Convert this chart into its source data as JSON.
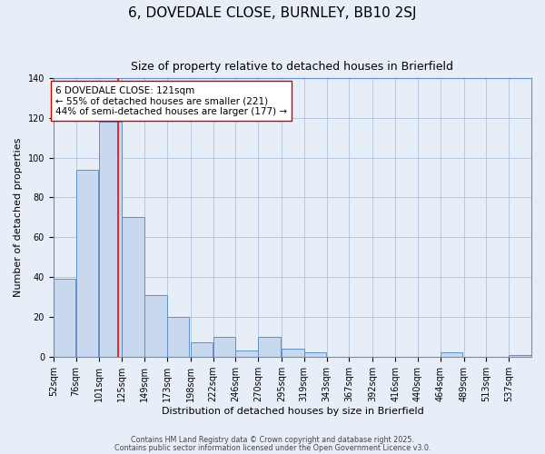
{
  "title": "6, DOVEDALE CLOSE, BURNLEY, BB10 2SJ",
  "subtitle": "Size of property relative to detached houses in Brierfield",
  "xlabel": "Distribution of detached houses by size in Brierfield",
  "ylabel": "Number of detached properties",
  "bar_color": "#c8d8ee",
  "bar_edge_color": "#6090c8",
  "bins": [
    52,
    76,
    101,
    125,
    149,
    173,
    198,
    222,
    246,
    270,
    295,
    319,
    343,
    367,
    392,
    416,
    440,
    464,
    489,
    513,
    537
  ],
  "values": [
    39,
    94,
    118,
    70,
    31,
    20,
    7,
    10,
    3,
    10,
    4,
    2,
    0,
    0,
    0,
    0,
    0,
    2,
    0,
    0,
    1
  ],
  "red_line_x": 121,
  "ylim": [
    0,
    140
  ],
  "yticks": [
    0,
    20,
    40,
    60,
    80,
    100,
    120,
    140
  ],
  "annotation_text": "6 DOVEDALE CLOSE: 121sqm\n← 55% of detached houses are smaller (221)\n44% of semi-detached houses are larger (177) →",
  "footer1": "Contains HM Land Registry data © Crown copyright and database right 2025.",
  "footer2": "Contains public sector information licensed under the Open Government Licence v3.0.",
  "bg_color": "#e8eef8",
  "plot_bg_color": "#e8eef8",
  "grid_color": "#afc4dd",
  "title_fontsize": 11,
  "subtitle_fontsize": 9,
  "axis_label_fontsize": 8,
  "tick_fontsize": 7,
  "annotation_fontsize": 7.5,
  "footer_fontsize": 5.8
}
